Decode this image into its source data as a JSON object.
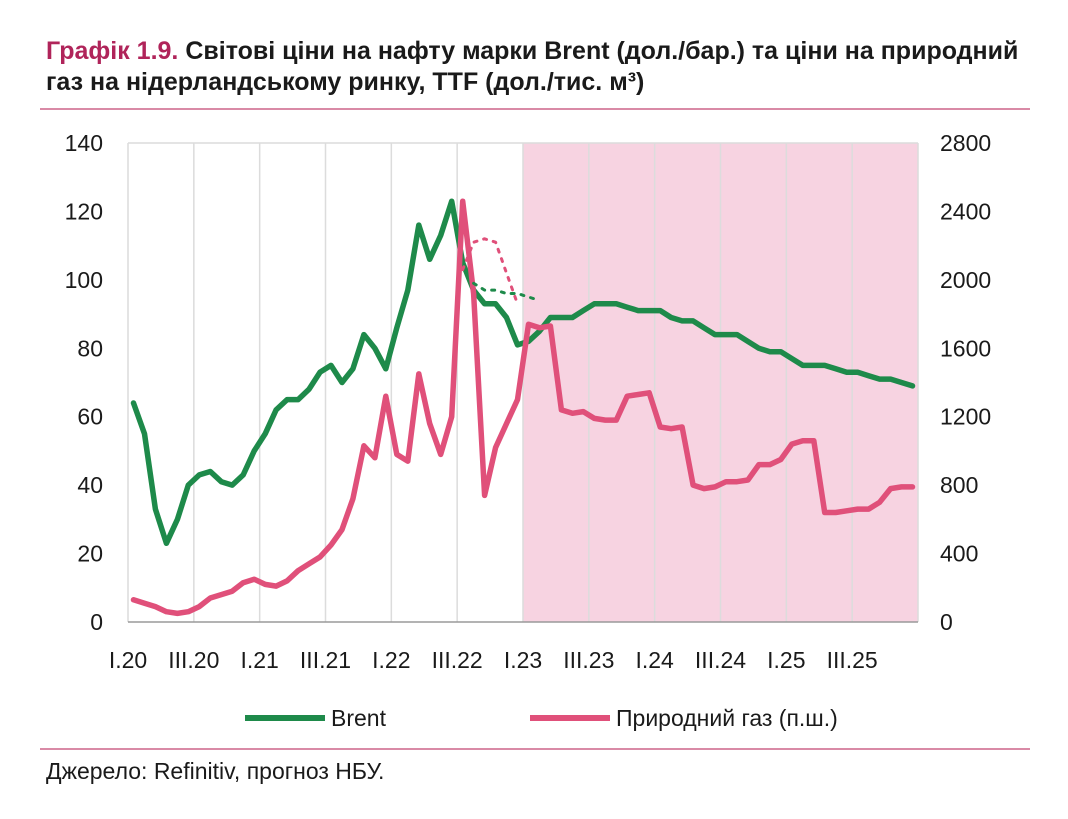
{
  "title": {
    "number": "Графік 1.9.",
    "text": "Світові ціни на нафту марки Brent (дол./бар.) та ціни на природний газ на нідерландському ринку, TTF (дол./тис. м³)"
  },
  "source": "Джерело: Refinitiv, прогноз НБУ.",
  "colors": {
    "brent": "#1e8a4a",
    "gas": "#e0507a",
    "forecast_shade": "#f7d3e1",
    "grid": "#dcdcdc"
  },
  "chart_data": {
    "type": "line",
    "x_tick_labels": [
      "I.20",
      "III.20",
      "I.21",
      "III.21",
      "I.22",
      "III.22",
      "I.23",
      "III.23",
      "I.24",
      "III.24",
      "I.25",
      "III.25"
    ],
    "x_range_months": "2020-01 to 2025-12",
    "forecast_shaded_from": "I.23",
    "y_left": {
      "ylim": [
        0,
        140
      ],
      "ticks": [
        0,
        20,
        40,
        60,
        80,
        100,
        120,
        140
      ]
    },
    "y_right": {
      "ylim": [
        0,
        2800
      ],
      "ticks": [
        0,
        400,
        800,
        1200,
        1600,
        2000,
        2400,
        2800
      ]
    },
    "grid": "vertical lines at quarterly ticks",
    "legend": {
      "placement": "bottom",
      "entries": [
        "Brent",
        "Природний газ (п.ш.)"
      ]
    },
    "series": [
      {
        "name": "Brent",
        "axis": "left",
        "color": "#1e8a4a",
        "dates": [
          "2020-01",
          "2020-02",
          "2020-03",
          "2020-04",
          "2020-05",
          "2020-06",
          "2020-07",
          "2020-08",
          "2020-09",
          "2020-10",
          "2020-11",
          "2020-12",
          "2021-01",
          "2021-02",
          "2021-03",
          "2021-04",
          "2021-05",
          "2021-06",
          "2021-07",
          "2021-08",
          "2021-09",
          "2021-10",
          "2021-11",
          "2021-12",
          "2022-01",
          "2022-02",
          "2022-03",
          "2022-04",
          "2022-05",
          "2022-06",
          "2022-07",
          "2022-08",
          "2022-09",
          "2022-10",
          "2022-11",
          "2022-12",
          "2023-01",
          "2023-02",
          "2023-03",
          "2023-04",
          "2023-05",
          "2023-06",
          "2023-07",
          "2023-08",
          "2023-09",
          "2023-10",
          "2023-11",
          "2023-12",
          "2024-01",
          "2024-02",
          "2024-03",
          "2024-04",
          "2024-05",
          "2024-06",
          "2024-07",
          "2024-08",
          "2024-09",
          "2024-10",
          "2024-11",
          "2024-12",
          "2025-01",
          "2025-02",
          "2025-03",
          "2025-04",
          "2025-05",
          "2025-06",
          "2025-07",
          "2025-08",
          "2025-09",
          "2025-10",
          "2025-11",
          "2025-12"
        ],
        "values": [
          64,
          55,
          33,
          23,
          30,
          40,
          43,
          44,
          41,
          40,
          43,
          50,
          55,
          62,
          65,
          65,
          68,
          73,
          75,
          70,
          74,
          84,
          80,
          74,
          86,
          97,
          116,
          106,
          113,
          123,
          105,
          97,
          93,
          93,
          89,
          81,
          82,
          85,
          89,
          89,
          89,
          91,
          93,
          93,
          93,
          92,
          91,
          91,
          91,
          89,
          88,
          88,
          86,
          84,
          84,
          84,
          82,
          80,
          79,
          79,
          77,
          75,
          75,
          75,
          74,
          73,
          73,
          72,
          71,
          71,
          70,
          69
        ]
      },
      {
        "name": "Природний газ (п.ш.)",
        "axis": "right",
        "color": "#e0507a",
        "dates": [
          "2020-01",
          "2020-02",
          "2020-03",
          "2020-04",
          "2020-05",
          "2020-06",
          "2020-07",
          "2020-08",
          "2020-09",
          "2020-10",
          "2020-11",
          "2020-12",
          "2021-01",
          "2021-02",
          "2021-03",
          "2021-04",
          "2021-05",
          "2021-06",
          "2021-07",
          "2021-08",
          "2021-09",
          "2021-10",
          "2021-11",
          "2021-12",
          "2022-01",
          "2022-02",
          "2022-03",
          "2022-04",
          "2022-05",
          "2022-06",
          "2022-07",
          "2022-08",
          "2022-09",
          "2022-10",
          "2022-11",
          "2022-12",
          "2023-01",
          "2023-02",
          "2023-03",
          "2023-04",
          "2023-05",
          "2023-06",
          "2023-07",
          "2023-08",
          "2023-09",
          "2023-10",
          "2023-11",
          "2023-12",
          "2024-01",
          "2024-02",
          "2024-03",
          "2024-04",
          "2024-05",
          "2024-06",
          "2024-07",
          "2024-08",
          "2024-09",
          "2024-10",
          "2024-11",
          "2024-12",
          "2025-01",
          "2025-02",
          "2025-03",
          "2025-04",
          "2025-05",
          "2025-06",
          "2025-07",
          "2025-08",
          "2025-09",
          "2025-10",
          "2025-11",
          "2025-12"
        ],
        "values": [
          130,
          110,
          90,
          60,
          50,
          60,
          90,
          140,
          160,
          180,
          230,
          250,
          220,
          210,
          240,
          300,
          340,
          380,
          450,
          540,
          720,
          1030,
          960,
          1320,
          980,
          940,
          1450,
          1160,
          980,
          1200,
          2460,
          1920,
          740,
          1020,
          1160,
          1300,
          1740,
          1720,
          1730,
          1240,
          1220,
          1230,
          1190,
          1180,
          1180,
          1320,
          1330,
          1340,
          1140,
          1130,
          1140,
          800,
          780,
          790,
          820,
          820,
          830,
          920,
          920,
          950,
          1040,
          1060,
          1060,
          640,
          640,
          650,
          660,
          660,
          700,
          780,
          790,
          790
        ]
      },
      {
        "name": "",
        "axis": "right",
        "color": "#e0507a",
        "style": "dotted",
        "dates": [
          "2022-07",
          "2022-08",
          "2022-09",
          "2022-10",
          "2022-11",
          "2022-12"
        ],
        "values": [
          2060,
          2220,
          2240,
          2220,
          2040,
          1860
        ]
      },
      {
        "name": "",
        "axis": "left",
        "color": "#1e8a4a",
        "style": "dotted",
        "dates": [
          "2022-08",
          "2022-09",
          "2022-10",
          "2022-11",
          "2022-12",
          "2023-01",
          "2023-02"
        ],
        "values": [
          99,
          97,
          97,
          96,
          96,
          95,
          94
        ]
      }
    ]
  }
}
